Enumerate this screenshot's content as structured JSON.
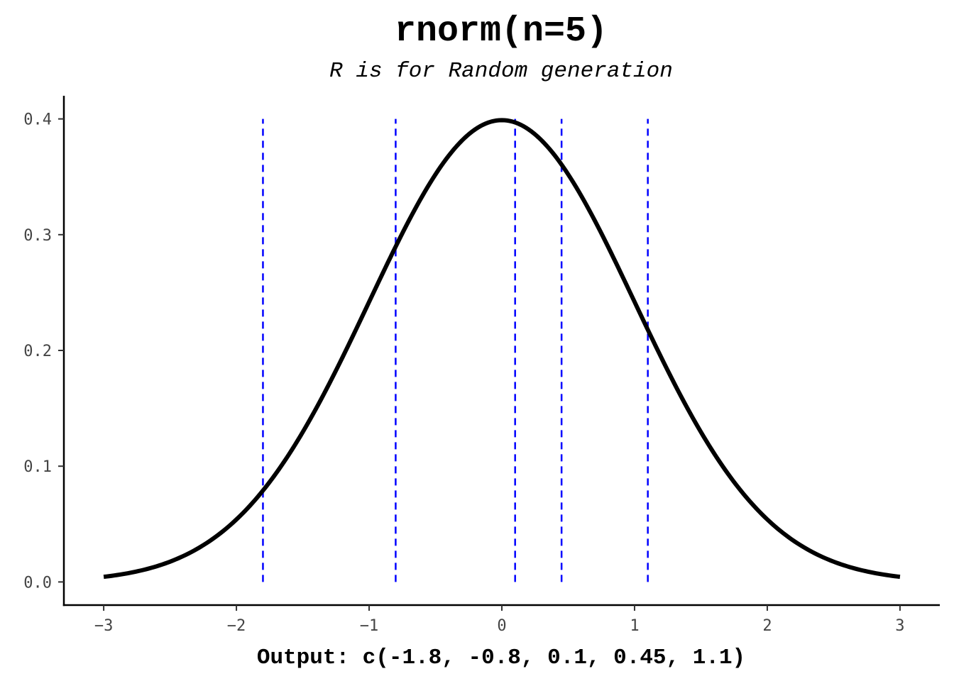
{
  "chart_data": {
    "type": "line",
    "title": "rnorm(n=5)",
    "subtitle": "R is for Random generation",
    "xlabel": "Output: c(-1.8, -0.8, 0.1, 0.45, 1.1)",
    "ylabel": "",
    "xlim": [
      -3.3,
      3.3
    ],
    "ylim": [
      -0.02,
      0.42
    ],
    "x_ticks": [
      -3,
      -2,
      -1,
      0,
      1,
      2,
      3
    ],
    "x_tick_labels": [
      "−3",
      "−2",
      "−1",
      "0",
      "1",
      "2",
      "3"
    ],
    "y_ticks": [
      0.0,
      0.1,
      0.2,
      0.3,
      0.4
    ],
    "y_tick_labels": [
      "0.0",
      "0.1",
      "0.2",
      "0.3",
      "0.4"
    ],
    "grid": false,
    "series": [
      {
        "kind": "density-curve",
        "distribution": "standard normal",
        "x_range": [
          -3,
          3
        ],
        "color": "#000000"
      }
    ],
    "vlines": {
      "x": [
        -1.8,
        -0.8,
        0.1,
        0.45,
        1.1
      ],
      "y_range": [
        0,
        0.4
      ],
      "color": "#0000ff",
      "style": "dashed"
    }
  }
}
